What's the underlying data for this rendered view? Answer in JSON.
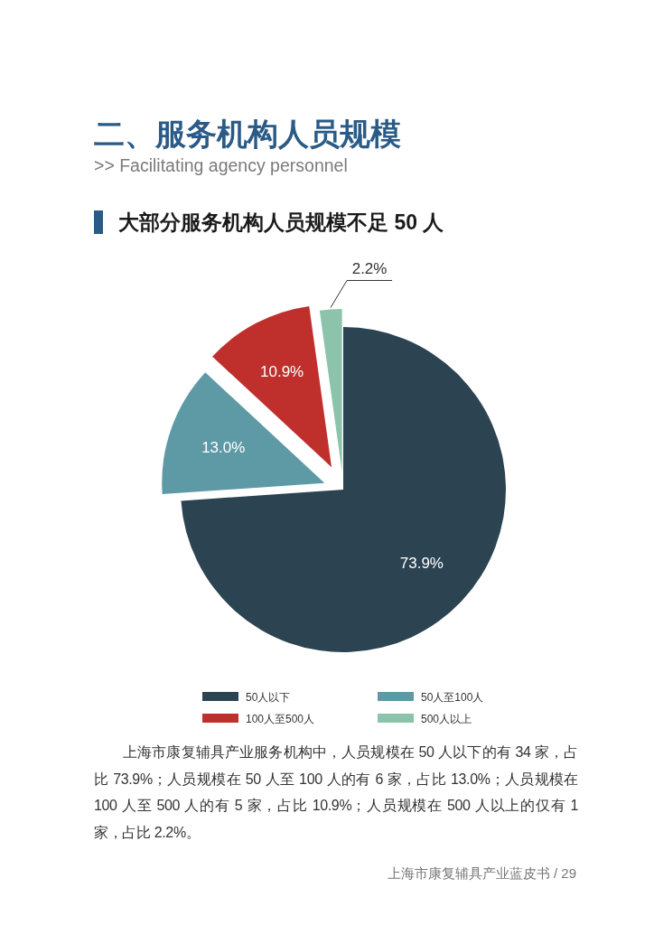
{
  "chart_data": {
    "type": "pie",
    "title": "二、服务机构人员规模",
    "subtitle": ">> Facilitating agency personnel",
    "categories": [
      "50人以下",
      "50人至100人",
      "100人至500人",
      "500人以上"
    ],
    "values": [
      73.9,
      13.0,
      10.9,
      2.2
    ],
    "colors": [
      "#2c4351",
      "#5d9aa5",
      "#bf302d",
      "#8cc3ab"
    ],
    "value_labels": [
      "73.9%",
      "13.0%",
      "10.9%",
      "2.2%"
    ],
    "legend": "bottom",
    "annotations": [
      "大部分服务机构人员规模不足 50 人",
      "上海市康复辅具产业服务机构中，人员规模在 50 人以下的有 34 家，占比 73.9%；人员规模在 50 人至 100 人的有 6 家，占比 13.0%；人员规模在 100 人至 500 人的有 5 家，占比 10.9%；人员规模在 500 人以上的仅有 1 家，占比 2.2%。",
      "上海市康复辅具产业蓝皮书 / 29"
    ]
  }
}
